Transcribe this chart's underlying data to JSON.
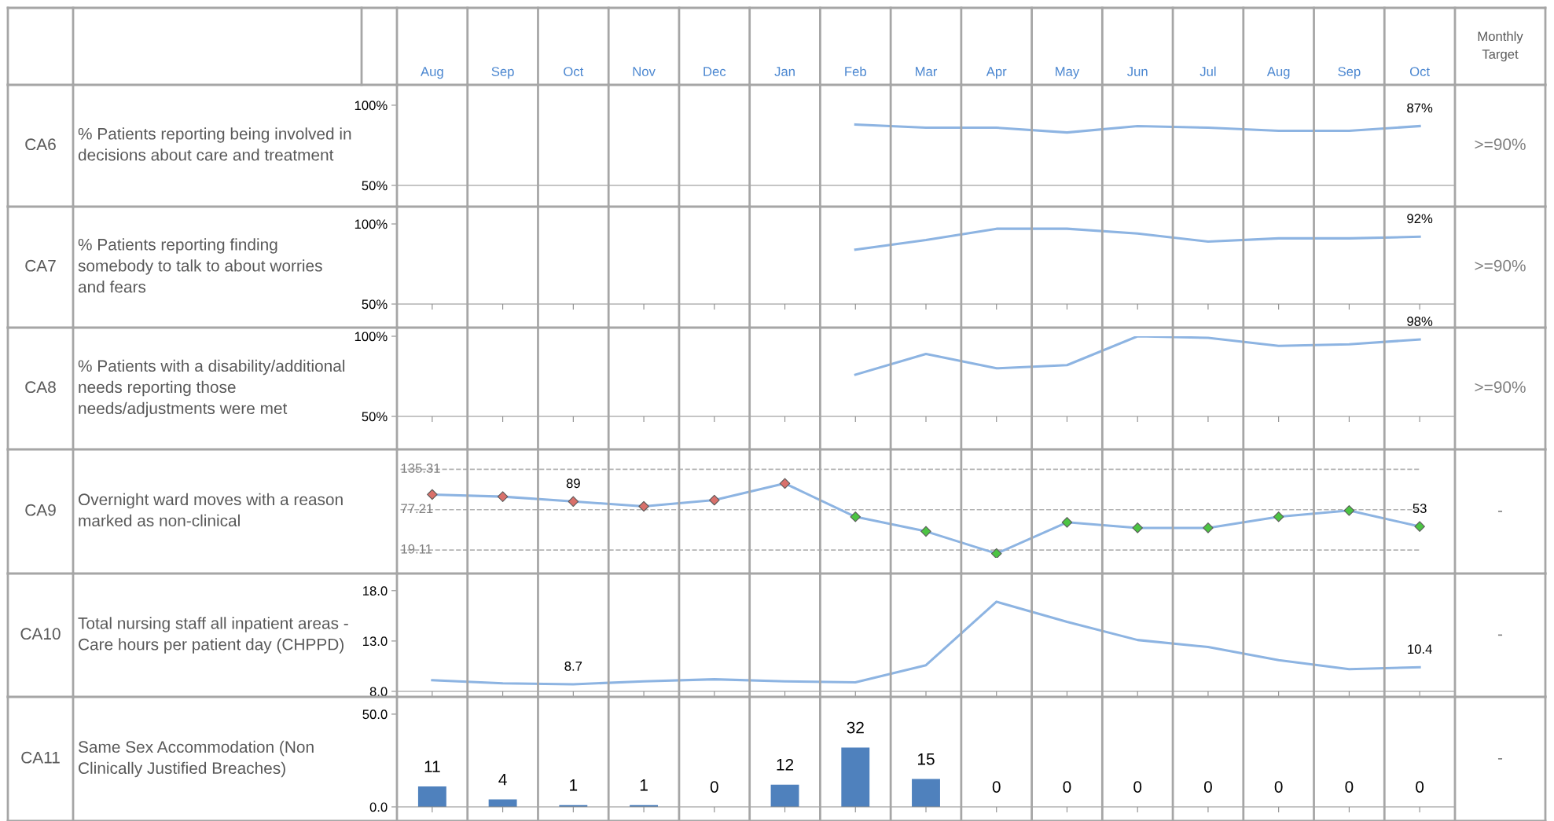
{
  "chart_data": [
    {
      "type": "line",
      "annotations": [
        "CA6",
        "% Patients reporting being involved in decisions about care and treatment",
        ">=90%",
        "Monthly Target"
      ],
      "categories": [
        "Aug",
        "Sep",
        "Oct",
        "Nov",
        "Dec",
        "Jan",
        "Feb",
        "Mar",
        "Apr",
        "May",
        "Jun",
        "Jul",
        "Aug",
        "Sep",
        "Oct"
      ],
      "series": [
        {
          "color": "#8db4e2",
          "values": [
            null,
            null,
            null,
            null,
            null,
            null,
            88,
            86,
            86,
            83,
            87,
            86,
            84,
            84,
            87
          ],
          "value_labels": [
            null,
            null,
            null,
            null,
            null,
            null,
            null,
            null,
            null,
            null,
            null,
            null,
            null,
            null,
            "87%"
          ]
        }
      ],
      "ylim": [
        50,
        160.7
      ],
      "yticks": [
        {
          "value": 50,
          "label": "50%"
        },
        {
          "value": 100,
          "label": "100%"
        }
      ]
    },
    {
      "type": "line",
      "annotations": [
        "CA7",
        "% Patients reporting finding somebody to talk to about worries and fears",
        ">=90%"
      ],
      "categories": [
        null,
        null,
        null,
        null,
        null,
        null,
        null,
        null,
        null,
        null,
        null,
        null,
        null,
        null,
        null
      ],
      "series": [
        {
          "color": "#8db4e2",
          "values": [
            null,
            null,
            null,
            null,
            null,
            null,
            84,
            90,
            97,
            97,
            94,
            89,
            91,
            91,
            92
          ],
          "value_labels": [
            null,
            null,
            null,
            null,
            null,
            null,
            null,
            null,
            null,
            null,
            null,
            null,
            null,
            null,
            "92%"
          ]
        }
      ],
      "ylim": [
        50,
        110.8
      ],
      "yticks": [
        {
          "value": 50,
          "label": "50%"
        },
        {
          "value": 100,
          "label": "100%"
        }
      ],
      "tick_labels": "y"
    },
    {
      "type": "line",
      "annotations": [
        "CA8",
        "% Patients with a disability/additional needs reporting those needs/adjustments were met",
        ">=90%"
      ],
      "categories": [
        null,
        null,
        null,
        null,
        null,
        null,
        null,
        null,
        null,
        null,
        null,
        null,
        null,
        null,
        null
      ],
      "series": [
        {
          "color": "#8db4e2",
          "values": [
            null,
            null,
            null,
            null,
            null,
            null,
            76,
            89,
            80,
            82,
            100,
            99,
            94,
            95,
            98
          ],
          "value_labels": [
            null,
            null,
            null,
            null,
            null,
            null,
            null,
            null,
            null,
            null,
            null,
            null,
            null,
            null,
            "98%"
          ]
        }
      ],
      "ylim": [
        50,
        100
      ],
      "yticks": [
        {
          "value": 50,
          "label": "50%"
        },
        {
          "value": 100,
          "label": "100%"
        }
      ],
      "tick_labels": "y"
    },
    {
      "type": "line",
      "annotations": [
        "CA9",
        "Overnight ward moves with a reason marked as non-clinical",
        "-"
      ],
      "categories": [
        null,
        null,
        null,
        null,
        null,
        null,
        null,
        null,
        null,
        null,
        null,
        null,
        null,
        null,
        null
      ],
      "series": [
        {
          "color": "#8db4e2",
          "values": [
            99,
            96,
            89,
            82,
            91,
            115,
            67,
            46,
            14,
            59,
            51,
            51,
            67,
            76,
            53
          ],
          "value_labels": [
            null,
            null,
            "89",
            null,
            null,
            null,
            null,
            null,
            null,
            null,
            null,
            null,
            null,
            null,
            "53"
          ],
          "colors": [
            "#d9706b",
            "#d9706b",
            "#d9706b",
            "#d9706b",
            "#d9706b",
            "#d9706b",
            "#4cc443",
            "#4cc443",
            "#4cc443",
            "#4cc443",
            "#4cc443",
            "#4cc443",
            "#4cc443",
            "#4cc443",
            "#4cc443"
          ]
        }
      ],
      "marker": "diamond",
      "ref_lines": [
        {
          "axis": "y",
          "value": 135.31,
          "label": "135.31",
          "color": "#b4b4b4",
          "line_style": "dashed"
        },
        {
          "axis": "y",
          "value": 77.21,
          "label": "77.21",
          "color": "#b4b4b4",
          "line_style": "dashed"
        },
        {
          "axis": "y",
          "value": 19.11,
          "label": "19.11",
          "color": "#b4b4b4",
          "line_style": "dashed"
        }
      ]
    },
    {
      "type": "line",
      "annotations": [
        "CA10",
        "Total nursing staff all inpatient areas - Care hours per patient day (CHPPD)",
        "-"
      ],
      "categories": [
        null,
        null,
        null,
        null,
        null,
        null,
        null,
        null,
        null,
        null,
        null,
        null,
        null,
        null,
        null
      ],
      "series": [
        {
          "color": "#8db4e2",
          "values": [
            9.1,
            8.8,
            8.7,
            9.0,
            9.2,
            9.0,
            8.9,
            10.6,
            16.9,
            14.9,
            13.1,
            12.4,
            11.1,
            10.2,
            10.4
          ],
          "value_labels": [
            null,
            null,
            "8.7",
            null,
            null,
            null,
            null,
            null,
            null,
            null,
            null,
            null,
            null,
            null,
            "10.4"
          ]
        }
      ],
      "ylim": [
        8,
        19.7
      ],
      "yticks": [
        {
          "value": 8,
          "label": "8.0"
        },
        {
          "value": 13,
          "label": "13.0"
        },
        {
          "value": 18,
          "label": "18.0"
        }
      ],
      "tick_labels": "y"
    },
    {
      "type": "bar",
      "annotations": [
        "CA11",
        "Same Sex Accommodation (Non Clinically Justified Breaches)",
        "-"
      ],
      "categories": [
        null,
        null,
        null,
        null,
        null,
        null,
        null,
        null,
        null,
        null,
        null,
        null,
        null,
        null,
        null
      ],
      "series": [
        {
          "color": "#4f81bd",
          "values": [
            11,
            4,
            1,
            1,
            0,
            12,
            32,
            15,
            0,
            0,
            0,
            0,
            0,
            0,
            0
          ]
        }
      ],
      "data_labels": true,
      "ylim": [
        0,
        59.3
      ],
      "yticks": [
        {
          "value": 0,
          "label": "0.0"
        },
        {
          "value": 50,
          "label": "50.0"
        }
      ],
      "tick_labels": "y"
    }
  ]
}
